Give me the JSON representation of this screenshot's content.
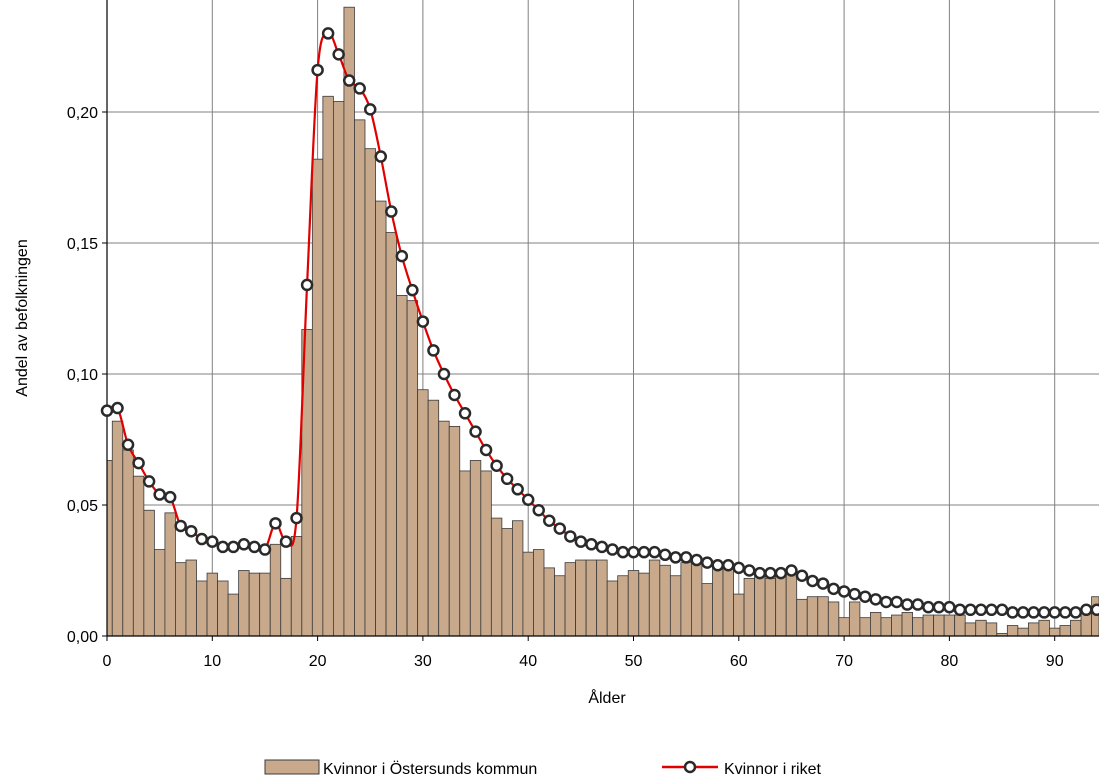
{
  "chart_data": {
    "type": "bar",
    "xlabel": "Ålder",
    "ylabel": "Andel av befolkningen",
    "xlim": [
      0,
      95
    ],
    "ylim": [
      0,
      0.24
    ],
    "x_ticks": [
      "0",
      "10",
      "20",
      "30",
      "40",
      "50",
      "60",
      "70",
      "80",
      "90"
    ],
    "y_ticks": [
      "0,00",
      "0,05",
      "0,10",
      "0,15",
      "0,20"
    ],
    "grid": true,
    "legend_position": "bottom",
    "colors": {
      "bars": "#c8a98b",
      "bar_stroke": "#3a3a3a",
      "line": "#e00000",
      "marker_fill": "#ffffff",
      "marker_stroke": "#2a2a2a",
      "grid": "#808080"
    },
    "series": [
      {
        "name": "Kvinnor i Östersunds kommun",
        "type": "bar",
        "x": [
          0,
          1,
          2,
          3,
          4,
          5,
          6,
          7,
          8,
          9,
          10,
          11,
          12,
          13,
          14,
          15,
          16,
          17,
          18,
          19,
          20,
          21,
          22,
          23,
          24,
          25,
          26,
          27,
          28,
          29,
          30,
          31,
          32,
          33,
          34,
          35,
          36,
          37,
          38,
          39,
          40,
          41,
          42,
          43,
          44,
          45,
          46,
          47,
          48,
          49,
          50,
          51,
          52,
          53,
          54,
          55,
          56,
          57,
          58,
          59,
          60,
          61,
          62,
          63,
          64,
          65,
          66,
          67,
          68,
          69,
          70,
          71,
          72,
          73,
          74,
          75,
          76,
          77,
          78,
          79,
          80,
          81,
          82,
          83,
          84,
          85,
          86,
          87,
          88,
          89,
          90,
          91,
          92,
          93,
          94,
          95
        ],
        "values": [
          0.067,
          0.082,
          0.071,
          0.061,
          0.048,
          0.033,
          0.047,
          0.028,
          0.029,
          0.021,
          0.024,
          0.021,
          0.016,
          0.025,
          0.024,
          0.024,
          0.035,
          0.022,
          0.038,
          0.117,
          0.182,
          0.206,
          0.204,
          0.24,
          0.197,
          0.186,
          0.166,
          0.154,
          0.13,
          0.128,
          0.094,
          0.09,
          0.082,
          0.08,
          0.063,
          0.067,
          0.063,
          0.045,
          0.041,
          0.044,
          0.032,
          0.033,
          0.026,
          0.023,
          0.028,
          0.029,
          0.029,
          0.029,
          0.021,
          0.023,
          0.025,
          0.024,
          0.029,
          0.027,
          0.023,
          0.028,
          0.028,
          0.02,
          0.026,
          0.026,
          0.016,
          0.022,
          0.025,
          0.022,
          0.025,
          0.024,
          0.014,
          0.015,
          0.015,
          0.013,
          0.007,
          0.013,
          0.007,
          0.009,
          0.007,
          0.008,
          0.009,
          0.007,
          0.008,
          0.008,
          0.008,
          0.008,
          0.005,
          0.006,
          0.005,
          0.001,
          0.004,
          0.003,
          0.005,
          0.006,
          0.003,
          0.004,
          0.006,
          0.01,
          0.015,
          0.007
        ]
      },
      {
        "name": "Kvinnor i riket",
        "type": "line",
        "x": [
          0,
          1,
          2,
          3,
          4,
          5,
          6,
          7,
          8,
          9,
          10,
          11,
          12,
          13,
          14,
          15,
          16,
          17,
          18,
          19,
          20,
          21,
          22,
          23,
          24,
          25,
          26,
          27,
          28,
          29,
          30,
          31,
          32,
          33,
          34,
          35,
          36,
          37,
          38,
          39,
          40,
          41,
          42,
          43,
          44,
          45,
          46,
          47,
          48,
          49,
          50,
          51,
          52,
          53,
          54,
          55,
          56,
          57,
          58,
          59,
          60,
          61,
          62,
          63,
          64,
          65,
          66,
          67,
          68,
          69,
          70,
          71,
          72,
          73,
          74,
          75,
          76,
          77,
          78,
          79,
          80,
          81,
          82,
          83,
          84,
          85,
          86,
          87,
          88,
          89,
          90,
          91,
          92,
          93,
          94,
          95
        ],
        "values": [
          0.086,
          0.087,
          0.073,
          0.066,
          0.059,
          0.054,
          0.053,
          0.042,
          0.04,
          0.037,
          0.036,
          0.034,
          0.034,
          0.035,
          0.034,
          0.033,
          0.043,
          0.036,
          0.045,
          0.134,
          0.216,
          0.23,
          0.222,
          0.212,
          0.209,
          0.201,
          0.183,
          0.162,
          0.145,
          0.132,
          0.12,
          0.109,
          0.1,
          0.092,
          0.085,
          0.078,
          0.071,
          0.065,
          0.06,
          0.056,
          0.052,
          0.048,
          0.044,
          0.041,
          0.038,
          0.036,
          0.035,
          0.034,
          0.033,
          0.032,
          0.032,
          0.032,
          0.032,
          0.031,
          0.03,
          0.03,
          0.029,
          0.028,
          0.027,
          0.027,
          0.026,
          0.025,
          0.024,
          0.024,
          0.024,
          0.025,
          0.023,
          0.021,
          0.02,
          0.018,
          0.017,
          0.016,
          0.015,
          0.014,
          0.013,
          0.013,
          0.012,
          0.012,
          0.011,
          0.011,
          0.011,
          0.01,
          0.01,
          0.01,
          0.01,
          0.01,
          0.009,
          0.009,
          0.009,
          0.009,
          0.009,
          0.009,
          0.009,
          0.01,
          0.01,
          0.01
        ]
      }
    ]
  }
}
